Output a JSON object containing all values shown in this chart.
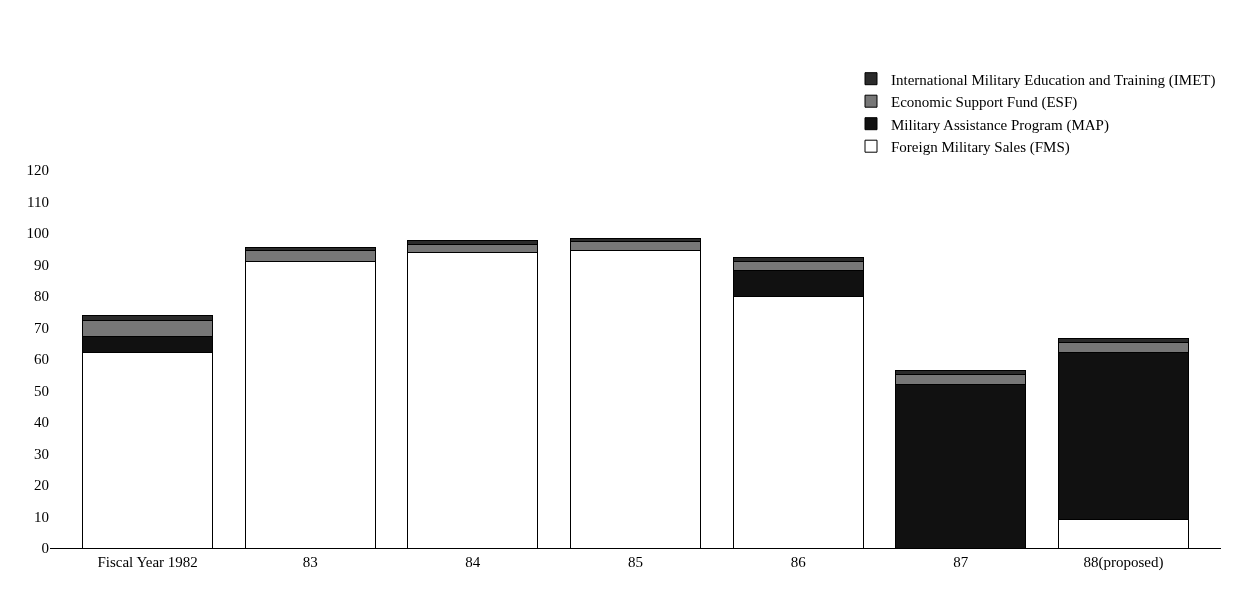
{
  "chart_data": {
    "type": "bar",
    "stacked": true,
    "categories": [
      "Fiscal Year 1982",
      "83",
      "84",
      "85",
      "86",
      "87",
      "88(proposed)"
    ],
    "series": [
      {
        "name": "Foreign Military Sales (FMS)",
        "color": "#ffffff",
        "values": [
          62.2,
          90.9,
          93.7,
          94.4,
          80.0,
          0,
          9.1
        ]
      },
      {
        "name": "Military Assistance Program (MAP)",
        "color": "#111111",
        "values": [
          5.0,
          0,
          0,
          0,
          8.0,
          52.0,
          53.0
        ]
      },
      {
        "name": "Economic Support Fund (ESF)",
        "color": "#777777",
        "values": [
          5.0,
          3.4,
          2.8,
          3.0,
          3.0,
          3.0,
          3.0
        ]
      },
      {
        "name": "International Military Education and Training (IMET)",
        "color": "#2b2b2b",
        "values": [
          1.5,
          1.0,
          1.0,
          1.0,
          1.2,
          1.4,
          1.4
        ]
      }
    ],
    "ylim": [
      0,
      120
    ],
    "yticks": [
      0,
      10,
      20,
      30,
      40,
      50,
      60,
      70,
      80,
      90,
      100,
      110,
      120
    ],
    "legend": "top right"
  }
}
